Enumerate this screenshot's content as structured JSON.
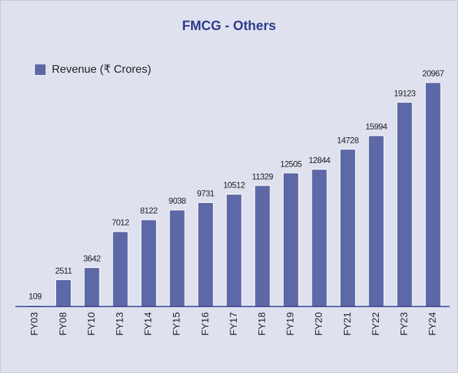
{
  "chart_data": {
    "type": "bar",
    "title": "FMCG - Others",
    "categories": [
      "FY03",
      "FY08",
      "FY10",
      "FY13",
      "FY14",
      "FY15",
      "FY16",
      "FY17",
      "FY18",
      "FY19",
      "FY20",
      "FY21",
      "FY22",
      "FY23",
      "FY24"
    ],
    "series": [
      {
        "name": "Revenue (₹ Crores)",
        "color": "#5d68a6",
        "values": [
          109,
          2511,
          3642,
          7012,
          8122,
          9038,
          9731,
          10512,
          11329,
          12505,
          12844,
          14728,
          15994,
          19123,
          20967
        ]
      }
    ]
  }
}
